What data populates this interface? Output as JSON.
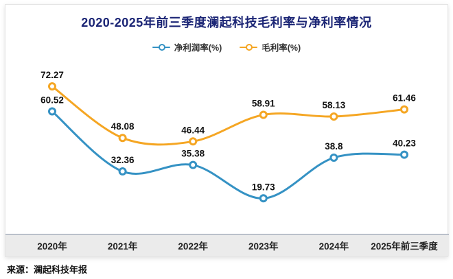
{
  "chart_data": {
    "type": "line",
    "title": "2020-2025年前三季度澜起科技毛利率与净利率情况",
    "categories": [
      "2020年",
      "2021年",
      "2022年",
      "2023年",
      "2024年",
      "2025年前三季度"
    ],
    "series": [
      {
        "name": "净利润率(%)",
        "color": "#3592c4",
        "values": [
          60.52,
          32.36,
          35.38,
          19.73,
          38.8,
          40.23
        ]
      },
      {
        "name": "毛利率(%)",
        "color": "#f5a623",
        "values": [
          72.27,
          48.08,
          46.44,
          58.91,
          58.13,
          61.46
        ]
      }
    ],
    "ylim": [
      15,
      80
    ],
    "grid": false,
    "legend_position": "top",
    "xlabel": "",
    "ylabel": ""
  },
  "source": "来源：澜起科技年报",
  "colors": {
    "title": "#1b2575",
    "value_label": "#111111",
    "axis_band": "#ebebeb",
    "axis_line": "#a8afbc",
    "axis_text": "#222222"
  }
}
